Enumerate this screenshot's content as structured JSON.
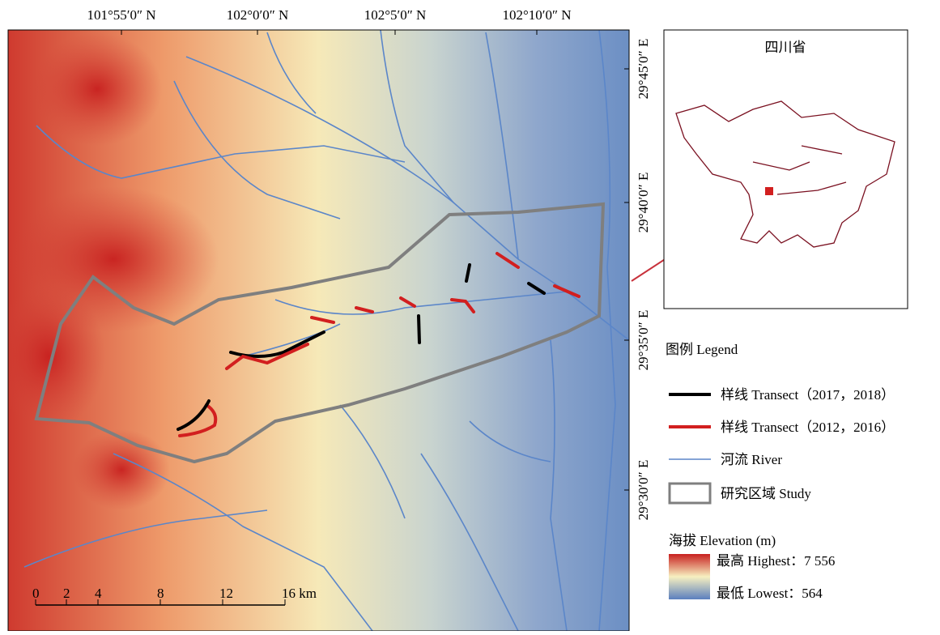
{
  "map": {
    "top_labels": [
      "101°55′0″ N",
      "102°0′0″ N",
      "102°5′0″ N",
      "102°10′0″ N"
    ],
    "right_labels": [
      "29°45′0″ E",
      "29°40′0″ E",
      "29°35′0″ E",
      "29°30′0″ E"
    ],
    "scale_labels": [
      "0",
      "2",
      "4",
      "8",
      "12",
      "16 km"
    ]
  },
  "inset": {
    "title": "四川省"
  },
  "legend": {
    "title": "图例 Legend",
    "items": [
      "样线 Transect（2017，2018）",
      "样线 Transect（2012，2016）",
      "河流 River",
      "研究区域 Study"
    ],
    "elevation": {
      "title": "海拔 Elevation (m)",
      "highest": "最高 Highest：7 556",
      "lowest": "最低 Lowest：564"
    }
  }
}
